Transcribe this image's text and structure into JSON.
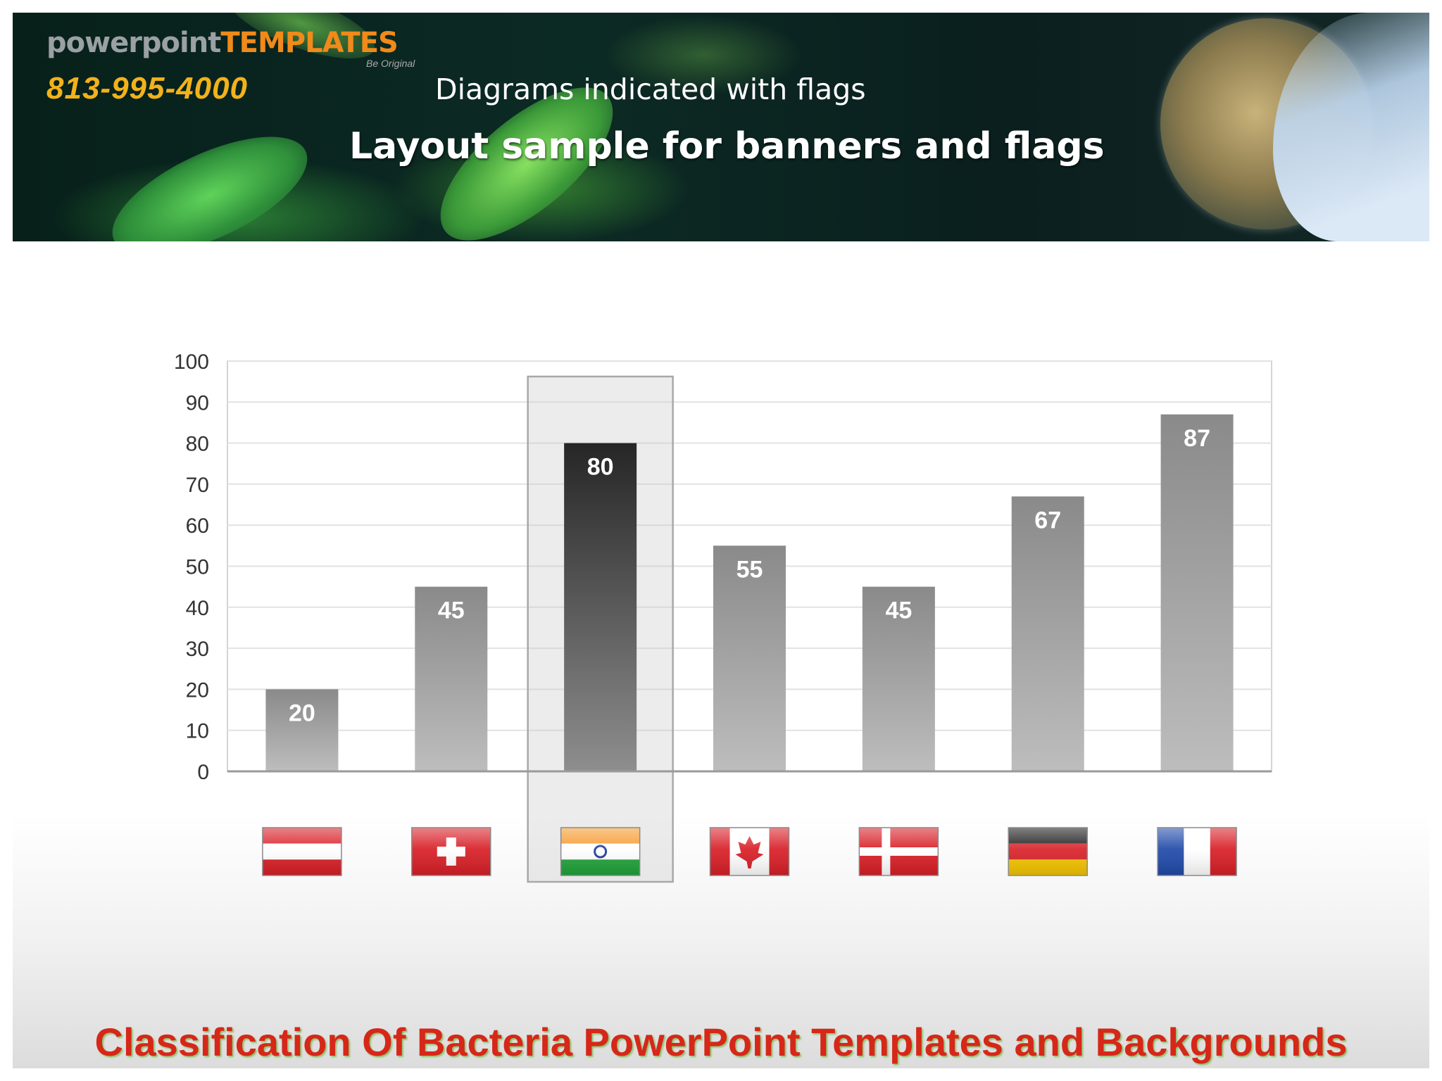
{
  "banner": {
    "logo_part1": "powerpoint",
    "logo_part2": "TEMPLATES",
    "logo_sub": "Be Original",
    "phone": "813-995-4000",
    "subtitle": "Diagrams indicated with flags",
    "title": "Layout sample for banners and flags"
  },
  "footer": {
    "text": "Classification Of Bacteria PowerPoint Templates and Backgrounds"
  },
  "chart_data": {
    "type": "bar",
    "categories": [
      "Austria",
      "Switzerland",
      "India",
      "Canada",
      "Denmark",
      "Germany",
      "France"
    ],
    "values": [
      20,
      45,
      80,
      55,
      45,
      67,
      87
    ],
    "ylim": [
      0,
      100
    ],
    "yticks": [
      0,
      10,
      20,
      30,
      40,
      50,
      60,
      70,
      80,
      90,
      100
    ],
    "grid": true,
    "highlighted_category": "India",
    "category_labels_shown_as": "flags"
  },
  "colors": {
    "bar_light": "#b5b5b5",
    "bar_dark": "#8a8a8a",
    "bar_highlight_top": "#2a2a2a",
    "bar_highlight_bottom": "#8c8c8c",
    "footer_text": "#d62718",
    "phone_text": "#f2b21b"
  }
}
